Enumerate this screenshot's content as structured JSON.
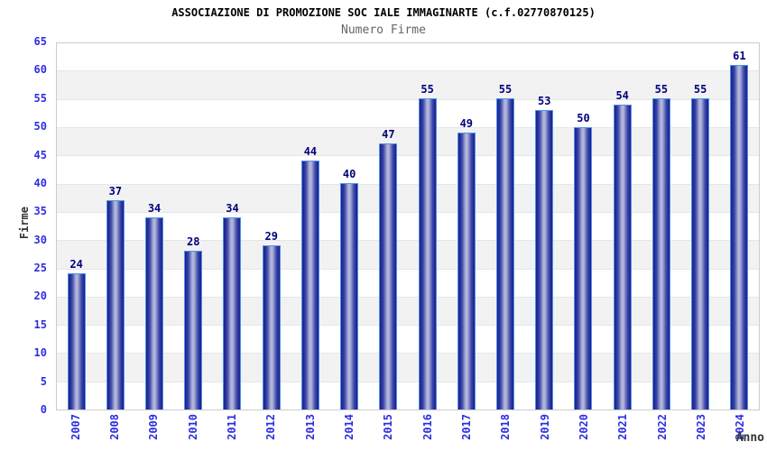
{
  "chart_data": {
    "type": "bar",
    "title": "ASSOCIAZIONE DI PROMOZIONE SOC IALE IMMAGINARTE (c.f.02770870125)",
    "subtitle": "Numero Firme",
    "xlabel": "Anno",
    "ylabel": "Firme",
    "categories": [
      "2007",
      "2008",
      "2009",
      "2010",
      "2011",
      "2012",
      "2013",
      "2014",
      "2015",
      "2016",
      "2017",
      "2018",
      "2019",
      "2020",
      "2021",
      "2022",
      "2023",
      "2024"
    ],
    "values": [
      24,
      37,
      34,
      28,
      34,
      29,
      44,
      40,
      47,
      55,
      49,
      55,
      53,
      50,
      54,
      55,
      55,
      61
    ],
    "ylim": [
      0,
      65
    ],
    "ytick_step": 5,
    "grid": "horizontal",
    "band_alternating": true,
    "legend_position": "none",
    "bar_value_labels": true,
    "x_tick_rotation_deg": 90,
    "colors": {
      "title": "#000000",
      "subtitle": "#666666",
      "tick_label": "#2e2ee0",
      "value_label": "#00007d",
      "axis_title": "#333333",
      "band_main": "#ffffff",
      "band_alt": "#f2f2f2",
      "gridline": "#e6e6e6",
      "plot_border": "#cccccc",
      "bar_border": "#4d94e8",
      "bar_dark": "#161e8c",
      "bar_mid": "#3d46a8",
      "bar_light": "#b0b6da",
      "background": "#ffffff"
    }
  }
}
